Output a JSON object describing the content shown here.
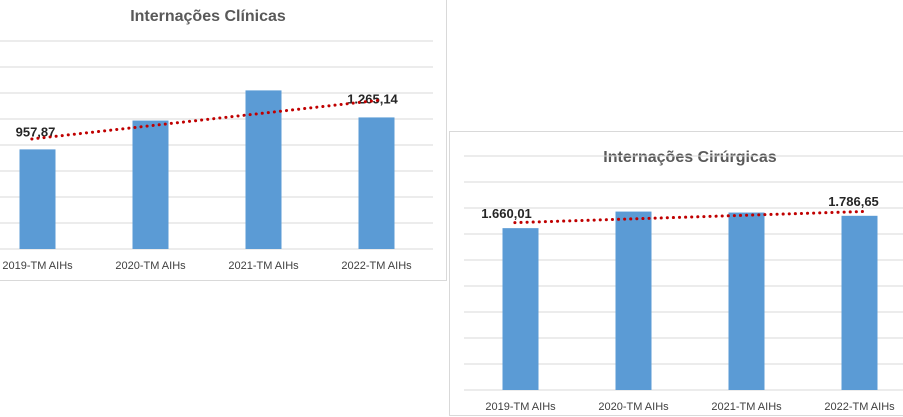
{
  "chart_data": [
    {
      "type": "bar",
      "title": "Internações Clínicas",
      "categories": [
        "2019-TM AIHs",
        "2020-TM AIHs",
        "2021-TM AIHs",
        "2022-TM AIHs"
      ],
      "values": [
        957.87,
        1235.0,
        1525.0,
        1265.14
      ],
      "data_labels": [
        "957,87",
        null,
        null,
        "1.265,14"
      ],
      "ylim": [
        0,
        2000
      ],
      "grid": true,
      "trendline": {
        "type": "linear",
        "style": "dotted",
        "color": "#c00000"
      },
      "colors": {
        "bar": "#5b9bd5",
        "grid": "#d9d9d9",
        "trend": "#c00000"
      }
    },
    {
      "type": "bar",
      "title": "Internações Cirúrgicas",
      "categories": [
        "2019-TM AIHs",
        "2020-TM AIHs",
        "2021-TM AIHs",
        "2022-TM AIHs"
      ],
      "values": [
        1660.01,
        1830.0,
        1820.0,
        1786.65
      ],
      "data_labels": [
        "1.660,01",
        null,
        null,
        "1.786,65"
      ],
      "ylim": [
        0,
        2400
      ],
      "grid": true,
      "trendline": {
        "type": "linear",
        "style": "dotted",
        "color": "#c00000"
      },
      "colors": {
        "bar": "#5b9bd5",
        "grid": "#d9d9d9",
        "trend": "#c00000"
      }
    }
  ]
}
